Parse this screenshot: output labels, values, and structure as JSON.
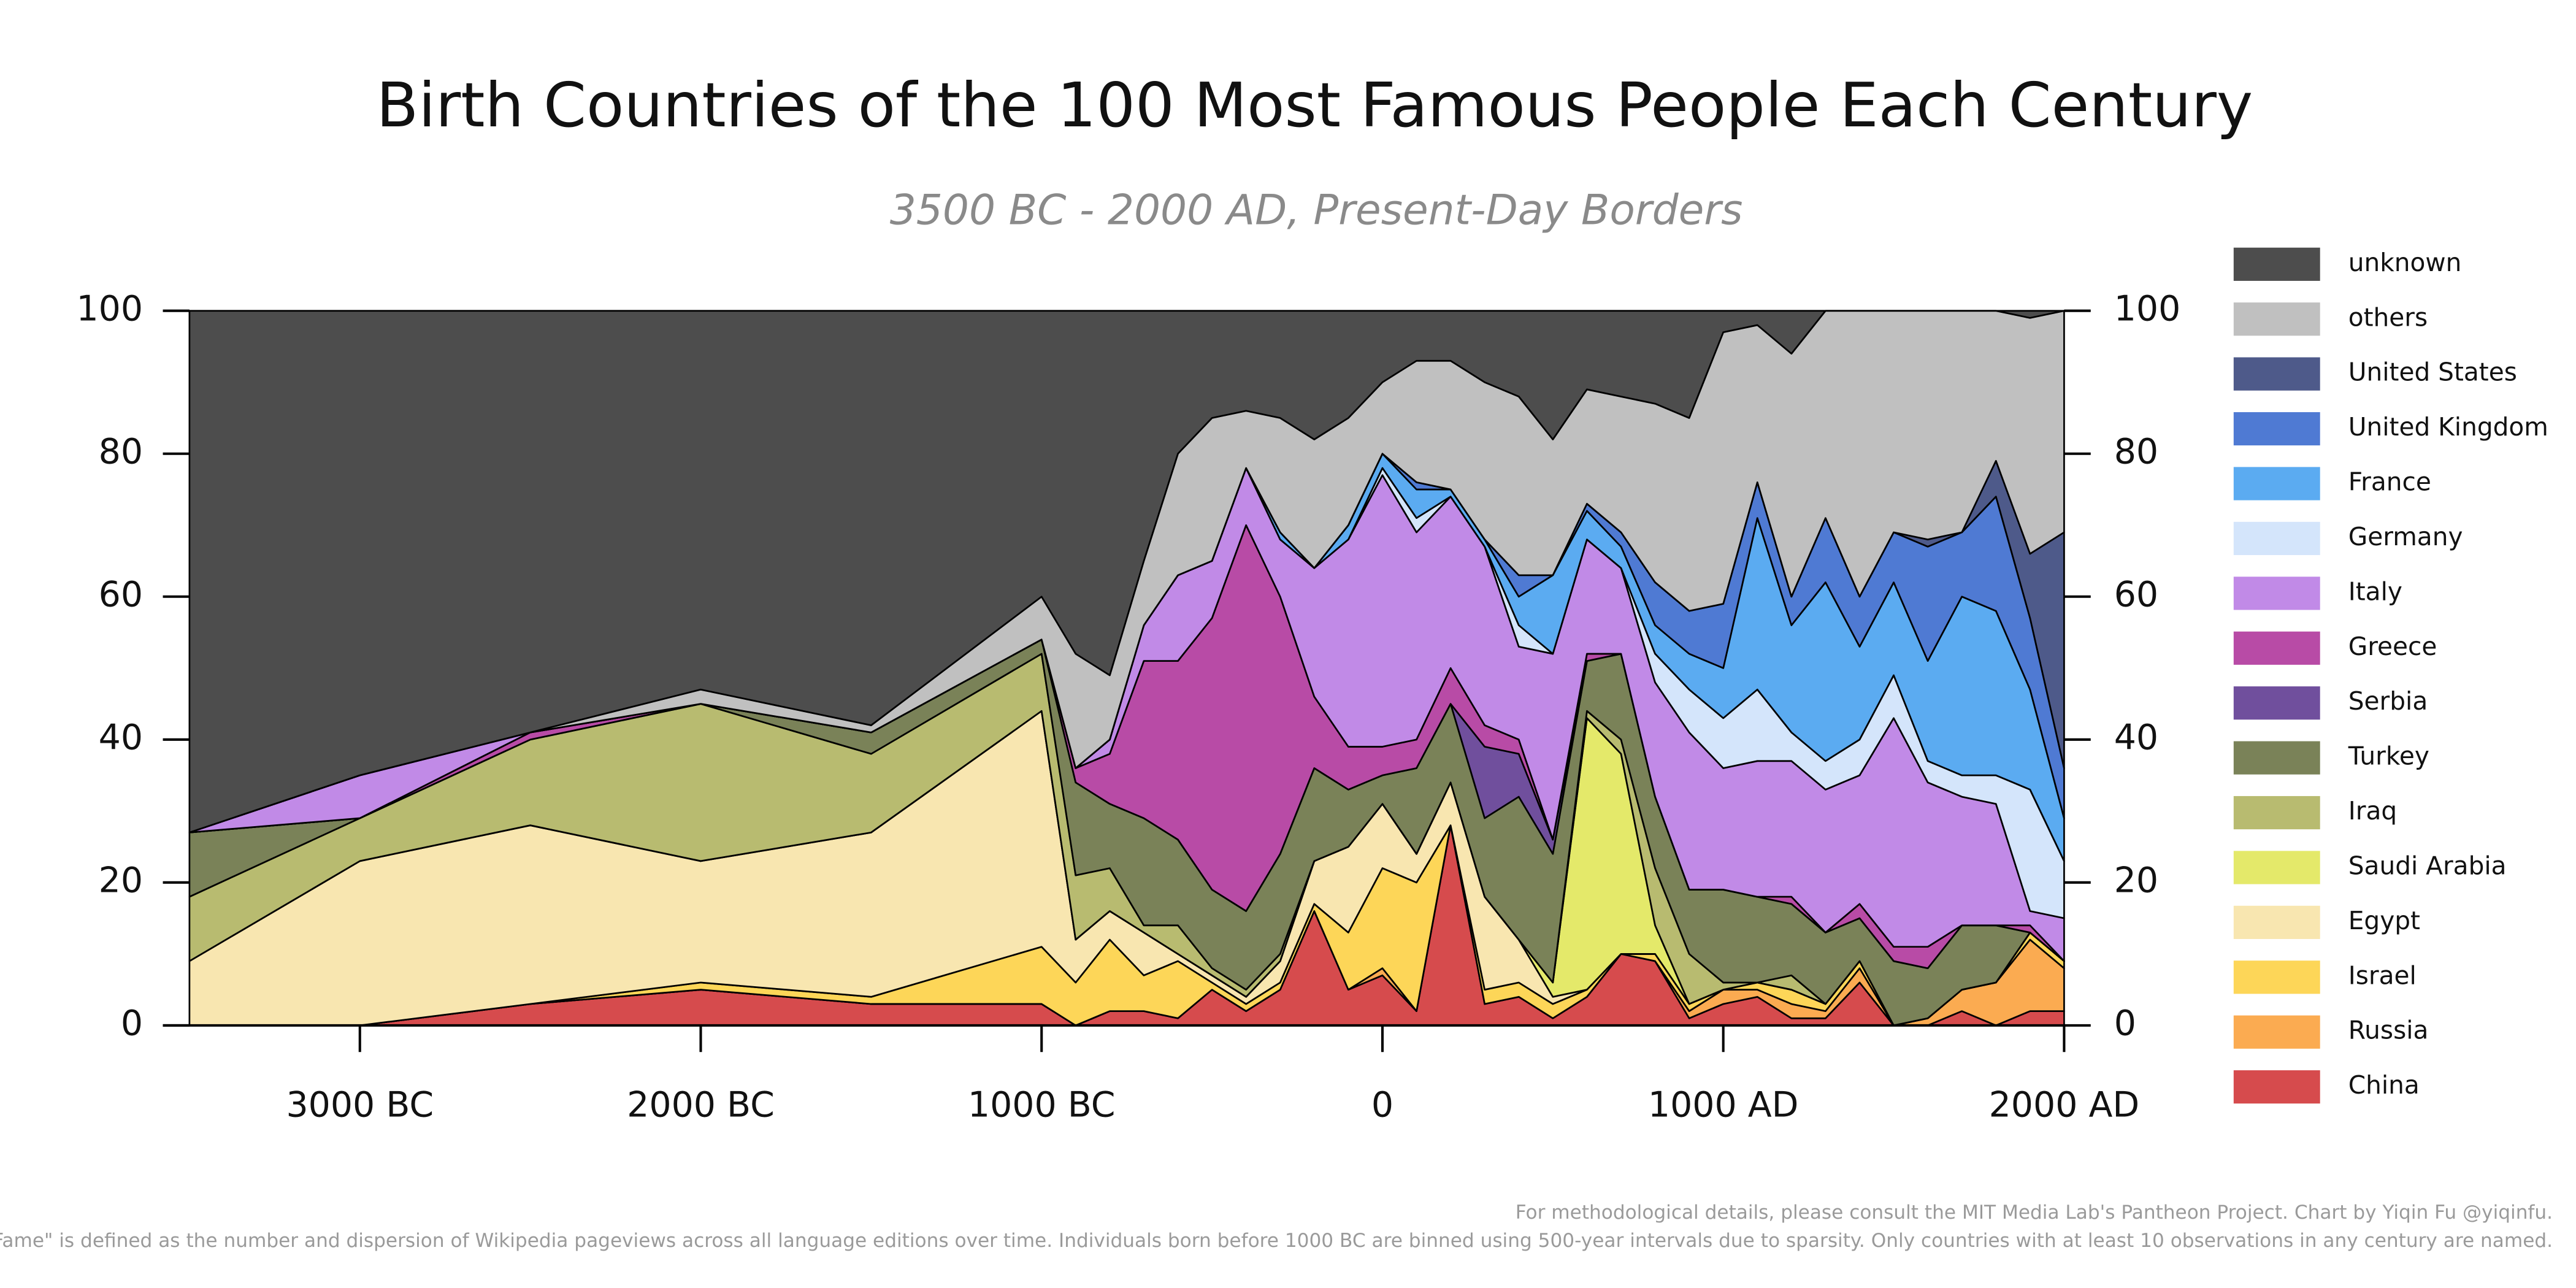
{
  "chart_data": {
    "type": "stacked_area",
    "title": "Birth Countries of the 100 Most Famous People Each Century",
    "subtitle": "3500 BC - 2000 AD, Present-Day Borders",
    "footnotes": [
      "For methodological details, please consult the MIT Media Lab's Pantheon Project. Chart by Yiqin Fu @yiqinfu.",
      "\"Fame\" is defined as the number and dispersion of Wikipedia pageviews across all language editions over time. Individuals born before 1000 BC are binned using 500-year intervals due to sparsity. Only countries with at least 10 observations in any century are named."
    ],
    "x": [
      -3500,
      -3000,
      -2500,
      -2000,
      -1500,
      -1000,
      -900,
      -800,
      -700,
      -600,
      -500,
      -400,
      -300,
      -200,
      -100,
      0,
      100,
      200,
      300,
      400,
      500,
      600,
      700,
      800,
      900,
      1000,
      1100,
      1200,
      1300,
      1400,
      1500,
      1600,
      1700,
      1800,
      1900,
      2000
    ],
    "xlim": [
      -3500,
      2000
    ],
    "xticks": [
      {
        "value": -3000,
        "label": "3000 BC"
      },
      {
        "value": -2000,
        "label": "2000 BC"
      },
      {
        "value": -1000,
        "label": "1000 BC"
      },
      0,
      {
        "value": 1000,
        "label": "1000 AD"
      },
      {
        "value": 2000,
        "label": "2000 AD"
      }
    ],
    "ylim": [
      0,
      100
    ],
    "yticks": [
      0,
      20,
      40,
      60,
      80,
      100
    ],
    "series": [
      {
        "name": "China",
        "color": "#d64b4d",
        "values": [
          0,
          0,
          3,
          5,
          3,
          3,
          0,
          2,
          2,
          1,
          5,
          2,
          5,
          16,
          5,
          7,
          2,
          28,
          3,
          4,
          1,
          4,
          10,
          9,
          1,
          3,
          4,
          1,
          1,
          6,
          0,
          0,
          2,
          0,
          2,
          2
        ]
      },
      {
        "name": "Russia",
        "color": "#fbab51",
        "values": [
          0,
          0,
          0,
          0,
          0,
          0,
          0,
          0,
          0,
          0,
          0,
          0,
          0,
          0,
          0,
          1,
          0,
          0,
          0,
          0,
          0,
          0,
          0,
          0,
          1,
          2,
          1,
          2,
          1,
          2,
          0,
          1,
          3,
          6,
          10,
          6
        ]
      },
      {
        "name": "Israel",
        "color": "#fdd658",
        "values": [
          0,
          0,
          0,
          1,
          1,
          8,
          6,
          10,
          5,
          8,
          1,
          1,
          1,
          1,
          8,
          14,
          18,
          0,
          2,
          2,
          2,
          1,
          0,
          1,
          1,
          0,
          1,
          2,
          1,
          1,
          0,
          0,
          0,
          0,
          1,
          1
        ]
      },
      {
        "name": "Egypt",
        "color": "#f8e6b0",
        "values": [
          9,
          23,
          25,
          17,
          23,
          33,
          6,
          4,
          6,
          1,
          1,
          1,
          3,
          6,
          12,
          9,
          4,
          6,
          13,
          6,
          1,
          0,
          0,
          0,
          0,
          0,
          0,
          0,
          0,
          0,
          0,
          0,
          0,
          0,
          0,
          0
        ]
      },
      {
        "name": "Saudi Arabia",
        "color": "#e4e96a",
        "values": [
          0,
          0,
          0,
          0,
          0,
          0,
          0,
          0,
          0,
          0,
          0,
          0,
          0,
          0,
          0,
          0,
          0,
          0,
          0,
          0,
          2,
          38,
          28,
          4,
          0,
          0,
          0,
          0,
          0,
          0,
          0,
          0,
          0,
          0,
          0,
          0
        ]
      },
      {
        "name": "Iraq",
        "color": "#b8bb70",
        "values": [
          9,
          6,
          12,
          22,
          11,
          8,
          9,
          6,
          1,
          4,
          1,
          1,
          1,
          0,
          0,
          0,
          0,
          0,
          0,
          0,
          0,
          1,
          2,
          8,
          7,
          1,
          0,
          2,
          0,
          0,
          0,
          0,
          0,
          0,
          0,
          0
        ]
      },
      {
        "name": "Turkey",
        "color": "#7a8258",
        "values": [
          9,
          0,
          0,
          0,
          3,
          2,
          13,
          9,
          15,
          12,
          11,
          11,
          14,
          13,
          8,
          4,
          12,
          11,
          11,
          20,
          18,
          7,
          12,
          10,
          9,
          13,
          12,
          10,
          10,
          6,
          9,
          7,
          9,
          8,
          0,
          0
        ]
      },
      {
        "name": "Serbia",
        "color": "#704f9d",
        "values": [
          0,
          0,
          0,
          0,
          0,
          0,
          0,
          0,
          0,
          0,
          0,
          0,
          0,
          0,
          0,
          0,
          0,
          0,
          10,
          6,
          2,
          0,
          0,
          0,
          0,
          0,
          0,
          0,
          0,
          0,
          0,
          0,
          0,
          0,
          0,
          0
        ]
      },
      {
        "name": "Greece",
        "color": "#b84ba6",
        "values": [
          0,
          0,
          1,
          0,
          0,
          0,
          2,
          7,
          22,
          25,
          38,
          54,
          36,
          10,
          6,
          4,
          4,
          5,
          3,
          2,
          0,
          1,
          0,
          0,
          0,
          0,
          0,
          1,
          0,
          2,
          2,
          3,
          0,
          0,
          1,
          0
        ]
      },
      {
        "name": "Italy",
        "color": "#c18ae7",
        "values": [
          0,
          6,
          0,
          0,
          0,
          0,
          0,
          2,
          5,
          12,
          8,
          8,
          8,
          18,
          29,
          38,
          29,
          24,
          25,
          13,
          26,
          16,
          12,
          16,
          22,
          17,
          19,
          19,
          20,
          18,
          32,
          23,
          18,
          17,
          2,
          6
        ]
      },
      {
        "name": "Germany",
        "color": "#d4e5fb",
        "values": [
          0,
          0,
          0,
          0,
          0,
          0,
          0,
          0,
          0,
          0,
          0,
          0,
          0,
          0,
          0,
          1,
          2,
          0,
          0,
          3,
          0,
          0,
          0,
          4,
          6,
          7,
          10,
          4,
          4,
          5,
          6,
          3,
          3,
          4,
          17,
          8
        ]
      },
      {
        "name": "France",
        "color": "#5babf1",
        "values": [
          0,
          0,
          0,
          0,
          0,
          0,
          0,
          0,
          0,
          0,
          0,
          0,
          1,
          0,
          2,
          2,
          4,
          1,
          1,
          4,
          11,
          4,
          3,
          4,
          5,
          7,
          24,
          15,
          25,
          13,
          13,
          14,
          25,
          23,
          14,
          6
        ]
      },
      {
        "name": "United Kingdom",
        "color": "#4f7ad3",
        "values": [
          0,
          0,
          0,
          0,
          0,
          0,
          0,
          0,
          0,
          0,
          0,
          0,
          0,
          0,
          0,
          0,
          1,
          0,
          0,
          3,
          0,
          1,
          2,
          6,
          6,
          9,
          5,
          4,
          9,
          7,
          7,
          16,
          9,
          16,
          10,
          7
        ]
      },
      {
        "name": "United States",
        "color": "#4e5a8a",
        "values": [
          0,
          0,
          0,
          0,
          0,
          0,
          0,
          0,
          0,
          0,
          0,
          0,
          0,
          0,
          0,
          0,
          0,
          0,
          0,
          0,
          0,
          0,
          0,
          0,
          0,
          0,
          0,
          0,
          0,
          0,
          0,
          1,
          0,
          5,
          9,
          33
        ]
      },
      {
        "name": "others",
        "color": "#c0c0c0",
        "values": [
          0,
          0,
          0,
          2,
          1,
          6,
          16,
          9,
          9,
          17,
          20,
          8,
          16,
          18,
          15,
          10,
          17,
          18,
          22,
          25,
          19,
          16,
          19,
          25,
          27,
          38,
          22,
          34,
          29,
          40,
          31,
          32,
          31,
          21,
          33,
          31
        ]
      },
      {
        "name": "unknown",
        "color": "#4d4d4d",
        "values": [
          73,
          65,
          59,
          53,
          58,
          40,
          48,
          51,
          35,
          20,
          15,
          14,
          15,
          18,
          15,
          10,
          7,
          7,
          10,
          12,
          18,
          11,
          12,
          13,
          15,
          3,
          2,
          6,
          0,
          0,
          0,
          0,
          0,
          0,
          1,
          0
        ]
      }
    ]
  }
}
